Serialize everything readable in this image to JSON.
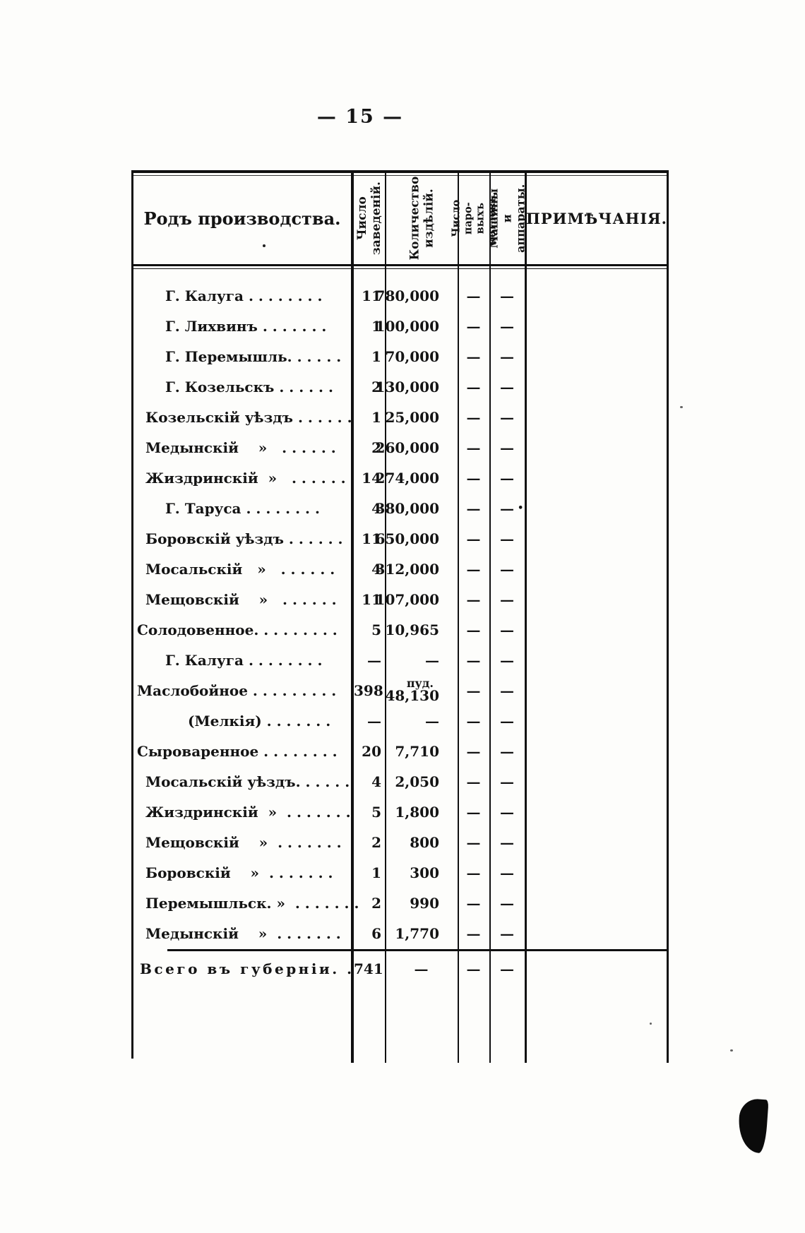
{
  "page": {
    "number_display": "— 15 —"
  },
  "table": {
    "headers": {
      "col_product": "Родъ производства.",
      "col_establishments": "Число\nзаведеній.",
      "col_quantity": "Количество\nиздѣлій.",
      "col_boilers": "Число паро-\nвыхъ котловъ.",
      "col_machines": "Машины и\nаппараты.",
      "col_notes": "ПРИМѢЧАНІЯ."
    },
    "rows": [
      {
        "label": "Г. Калуга . . . . . . . .",
        "indent": "city",
        "est": "11",
        "qty": "780,000",
        "boilers": "—",
        "machines": "—",
        "note": ""
      },
      {
        "label": "Г. Лихвинъ . . . . . . .",
        "indent": "city",
        "est": "1",
        "qty": "100,000",
        "boilers": "—",
        "machines": "—",
        "note": ""
      },
      {
        "label": "Г. Перемышль. . . . . .",
        "indent": "city",
        "est": "1",
        "qty": "70,000",
        "boilers": "—",
        "machines": "—",
        "note": ""
      },
      {
        "label": "Г. Козельскъ . . . . . .",
        "indent": "city",
        "est": "2",
        "qty": "130,000",
        "boilers": "—",
        "machines": "—",
        "note": ""
      },
      {
        "label": "Козельскій уѣздъ . . . . . .",
        "indent": "uezd",
        "est": "1",
        "qty": "25,000",
        "boilers": "—",
        "machines": "—",
        "note": ""
      },
      {
        "label": "Медынскій    »   . . . . . .",
        "indent": "uezd",
        "est": "2",
        "qty": "260,000",
        "boilers": "—",
        "machines": "—",
        "note": ""
      },
      {
        "label": "Жиздринскій  »   . . . . . .",
        "indent": "uezd",
        "est": "14",
        "qty": "274,000",
        "boilers": "—",
        "machines": "—",
        "note": ""
      },
      {
        "label": "Г. Таруса . . . . . . . .",
        "indent": "city",
        "est": "4",
        "qty": "380,000",
        "boilers": "—",
        "machines": "—",
        "note": "•"
      },
      {
        "label": "Боровскій уѣздъ . . . . . .",
        "indent": "uezd",
        "est": "11",
        "qty": "650,000",
        "boilers": "—",
        "machines": "—",
        "note": ""
      },
      {
        "label": "Мосальскій   »   . . . . . .",
        "indent": "uezd",
        "est": "4",
        "qty": "312,000",
        "boilers": "—",
        "machines": "—",
        "note": ""
      },
      {
        "label": "Мещовскій    »   . . . . . .",
        "indent": "uezd",
        "est": "11",
        "qty": "107,000",
        "boilers": "—",
        "machines": "—",
        "note": ""
      },
      {
        "label": "Солодовенное. . . . . . . . .",
        "indent": "cat",
        "est": "5",
        "qty": "10,965",
        "boilers": "—",
        "machines": "—",
        "note": ""
      },
      {
        "label": "Г. Калуга . . . . . . . .",
        "indent": "city",
        "est": "—",
        "qty": "—",
        "boilers": "—",
        "machines": "—",
        "note": ""
      },
      {
        "label": "Маслобойное . . . . . . . . .",
        "indent": "cat",
        "est": "398",
        "unit": "пуд.",
        "qty": "48,130",
        "boilers": "—",
        "machines": "—",
        "note": ""
      },
      {
        "label": "(Мелкія) . . . . . . .",
        "indent": "melk",
        "est": "—",
        "qty": "—",
        "boilers": "—",
        "machines": "—",
        "note": ""
      },
      {
        "label": "Сыроваренное . . . . . . . .",
        "indent": "cat",
        "est": "20",
        "qty": "7,710",
        "boilers": "—",
        "machines": "—",
        "note": ""
      },
      {
        "label": "Мосальскій уѣздъ. . . . . .",
        "indent": "uezd",
        "est": "4",
        "qty": "2,050",
        "boilers": "—",
        "machines": "—",
        "note": ""
      },
      {
        "label": "Жиздринскій  »  . . . . . . .",
        "indent": "uezd",
        "est": "5",
        "qty": "1,800",
        "boilers": "—",
        "machines": "—",
        "note": ""
      },
      {
        "label": "Мещовскій    »  . . . . . . .",
        "indent": "uezd",
        "est": "2",
        "qty": "800",
        "boilers": "—",
        "machines": "—",
        "note": ""
      },
      {
        "label": "Боровскій    »  . . . . . . .",
        "indent": "uezd",
        "est": "1",
        "qty": "300",
        "boilers": "—",
        "machines": "—",
        "note": ""
      },
      {
        "label": "Перемышльск. »  . . . . . . .",
        "indent": "uezd",
        "est": "2",
        "qty": "990",
        "boilers": "—",
        "machines": "—",
        "note": ""
      },
      {
        "label": "Медынскій    »  . . . . . . .",
        "indent": "uezd",
        "est": "6",
        "qty": "1,770",
        "boilers": "—",
        "machines": "—",
        "note": ""
      }
    ],
    "total": {
      "label": "Всего въ губерніи. .",
      "est": "741",
      "qty": "—",
      "boilers": "—",
      "machines": "—"
    }
  }
}
